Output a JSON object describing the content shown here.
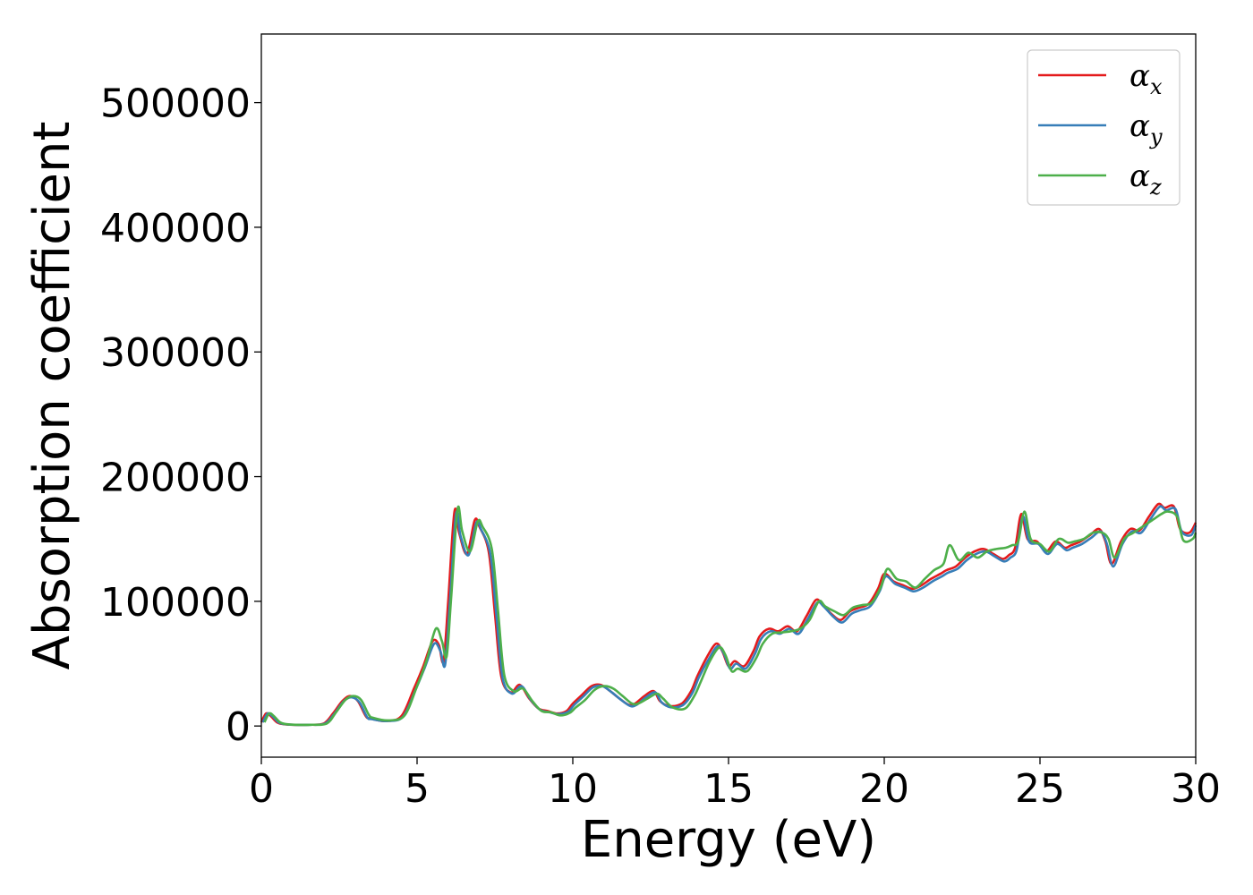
{
  "chart_data": {
    "type": "line",
    "title": "",
    "xlabel": "Energy (eV)",
    "ylabel": "Absorption coefficient",
    "xlim": [
      0,
      30
    ],
    "ylim": [
      -25000,
      555000
    ],
    "xticks": [
      0,
      5,
      10,
      15,
      20,
      25,
      30
    ],
    "yticks": [
      0,
      100000,
      200000,
      300000,
      400000,
      500000
    ],
    "grid": false,
    "legend_position": "top-right",
    "series": [
      {
        "name": "αx",
        "name_base": "α",
        "name_sub": "x",
        "color": "#e41a1c",
        "x": [
          0,
          0.15,
          0.3,
          0.5,
          0.7,
          1,
          1.5,
          2,
          2.3,
          2.6,
          2.85,
          3.1,
          3.35,
          3.5,
          4,
          4.5,
          4.9,
          5.2,
          5.5,
          5.7,
          5.85,
          6.0,
          6.2,
          6.35,
          6.6,
          6.85,
          7.0,
          7.3,
          7.5,
          7.7,
          8.0,
          8.3,
          8.6,
          8.9,
          9.2,
          9.5,
          9.8,
          10.0,
          10.3,
          10.6,
          10.9,
          11.2,
          11.5,
          11.8,
          12.0,
          12.3,
          12.6,
          12.8,
          13.1,
          13.5,
          13.8,
          14.0,
          14.3,
          14.6,
          14.8,
          15.0,
          15.2,
          15.5,
          15.8,
          16.0,
          16.3,
          16.6,
          16.9,
          17.2,
          17.5,
          17.8,
          18.0,
          18.3,
          18.6,
          18.9,
          19.2,
          19.5,
          19.8,
          20.0,
          20.3,
          20.6,
          20.9,
          21.2,
          21.5,
          21.8,
          22.0,
          22.3,
          22.6,
          22.9,
          23.2,
          23.5,
          23.8,
          24.0,
          24.2,
          24.4,
          24.6,
          24.9,
          25.2,
          25.5,
          25.8,
          26.0,
          26.3,
          26.6,
          26.9,
          27.1,
          27.3,
          27.6,
          27.9,
          28.2,
          28.5,
          28.8,
          29.0,
          29.3,
          29.5,
          29.8,
          30.0
        ],
        "y": [
          3000,
          10000,
          8000,
          3000,
          1500,
          1000,
          1000,
          2000,
          10000,
          20000,
          24000,
          20000,
          8000,
          6000,
          4000,
          8000,
          30000,
          48000,
          68000,
          65000,
          52000,
          100000,
          172000,
          155000,
          138000,
          165000,
          160000,
          140000,
          90000,
          40000,
          27000,
          33000,
          22000,
          14000,
          12000,
          10000,
          12000,
          18000,
          25000,
          32000,
          33000,
          28000,
          22000,
          17000,
          18000,
          24000,
          28000,
          20000,
          16000,
          18000,
          28000,
          40000,
          55000,
          66000,
          60000,
          48000,
          52000,
          48000,
          60000,
          72000,
          78000,
          76000,
          80000,
          76000,
          88000,
          101000,
          98000,
          90000,
          85000,
          92000,
          95000,
          98000,
          110000,
          122000,
          116000,
          113000,
          110000,
          113000,
          118000,
          122000,
          125000,
          128000,
          135000,
          140000,
          142000,
          138000,
          134000,
          137000,
          143000,
          170000,
          150000,
          148000,
          140000,
          148000,
          143000,
          145000,
          148000,
          153000,
          158000,
          148000,
          130000,
          148000,
          158000,
          157000,
          168000,
          178000,
          175000,
          176000,
          158000,
          155000,
          163000
        ],
        "x_offset": 0
      },
      {
        "name": "αy",
        "name_base": "α",
        "name_sub": "y",
        "color": "#377eb8",
        "x": [
          0,
          0.15,
          0.3,
          0.5,
          0.7,
          1,
          1.5,
          2,
          2.3,
          2.6,
          2.85,
          3.1,
          3.35,
          3.5,
          4,
          4.5,
          4.9,
          5.2,
          5.5,
          5.7,
          5.85,
          6.0,
          6.2,
          6.35,
          6.6,
          6.85,
          7.0,
          7.3,
          7.5,
          7.7,
          8.0,
          8.3,
          8.6,
          8.9,
          9.2,
          9.5,
          9.8,
          10.0,
          10.3,
          10.6,
          10.9,
          11.2,
          11.5,
          11.8,
          12.0,
          12.3,
          12.6,
          12.8,
          13.1,
          13.5,
          13.8,
          14.0,
          14.3,
          14.6,
          14.8,
          15.0,
          15.2,
          15.5,
          15.8,
          16.0,
          16.3,
          16.6,
          16.9,
          17.2,
          17.5,
          17.8,
          18.0,
          18.3,
          18.6,
          18.9,
          19.2,
          19.5,
          19.8,
          20.0,
          20.3,
          20.6,
          20.9,
          21.2,
          21.5,
          21.8,
          22.0,
          22.3,
          22.6,
          22.9,
          23.2,
          23.5,
          23.8,
          24.0,
          24.2,
          24.4,
          24.6,
          24.9,
          25.2,
          25.5,
          25.8,
          26.0,
          26.3,
          26.6,
          26.9,
          27.1,
          27.3,
          27.6,
          27.9,
          28.2,
          28.5,
          28.8,
          29.0,
          29.3,
          29.5,
          29.8,
          30.0
        ],
        "y": [
          3000,
          10000,
          8000,
          3000,
          1500,
          1000,
          1000,
          2000,
          10000,
          20000,
          23000,
          19000,
          7000,
          5500,
          4000,
          7500,
          29000,
          47000,
          66000,
          60000,
          49000,
          98000,
          170000,
          152000,
          137000,
          163000,
          158000,
          138000,
          88000,
          38000,
          26000,
          32000,
          21000,
          13000,
          11000,
          9500,
          11500,
          17000,
          24000,
          31000,
          32000,
          27000,
          21000,
          16000,
          17000,
          23000,
          27000,
          19000,
          15000,
          17000,
          27000,
          39000,
          53000,
          64000,
          58000,
          46000,
          50000,
          46000,
          58000,
          70000,
          76000,
          74000,
          78000,
          74000,
          86000,
          99000,
          96000,
          88000,
          83000,
          90000,
          93000,
          96000,
          108000,
          120000,
          114000,
          111000,
          108000,
          111000,
          116000,
          120000,
          123000,
          126000,
          133000,
          138000,
          140000,
          136000,
          132000,
          135000,
          141000,
          168000,
          148000,
          146000,
          138000,
          146000,
          141000,
          143000,
          146000,
          151000,
          156000,
          146000,
          128000,
          146000,
          156000,
          155000,
          166000,
          176000,
          173000,
          174000,
          156000,
          153000,
          161000
        ],
        "x_offset": 0.05
      },
      {
        "name": "αz",
        "name_base": "α",
        "name_sub": "z",
        "color": "#4daf4a",
        "x": [
          0,
          0.15,
          0.3,
          0.5,
          0.7,
          1,
          1.5,
          2,
          2.3,
          2.6,
          2.85,
          3.1,
          3.35,
          3.5,
          4,
          4.5,
          4.9,
          5.2,
          5.5,
          5.7,
          5.85,
          6.0,
          6.2,
          6.35,
          6.6,
          6.85,
          7.0,
          7.3,
          7.5,
          7.7,
          8.0,
          8.3,
          8.6,
          8.9,
          9.2,
          9.5,
          9.8,
          10.0,
          10.3,
          10.6,
          10.9,
          11.2,
          11.5,
          11.8,
          12.0,
          12.3,
          12.6,
          12.8,
          13.1,
          13.5,
          13.8,
          14.0,
          14.3,
          14.6,
          14.8,
          15.0,
          15.2,
          15.5,
          15.8,
          16.0,
          16.3,
          16.6,
          16.9,
          17.2,
          17.5,
          17.8,
          18.0,
          18.3,
          18.6,
          18.9,
          19.2,
          19.5,
          19.8,
          20.0,
          20.3,
          20.6,
          20.9,
          21.2,
          21.5,
          21.8,
          22.0,
          22.3,
          22.6,
          22.9,
          23.2,
          23.5,
          23.8,
          24.0,
          24.2,
          24.4,
          24.6,
          24.9,
          25.2,
          25.5,
          25.8,
          26.0,
          26.3,
          26.6,
          26.9,
          27.1,
          27.3,
          27.6,
          27.9,
          28.2,
          28.5,
          28.8,
          29.0,
          29.3,
          29.5,
          29.8,
          30.0
        ],
        "y": [
          3000,
          10000,
          8000,
          3000,
          1500,
          1000,
          1000,
          2000,
          11000,
          21000,
          24000,
          21000,
          9000,
          6500,
          4500,
          8500,
          32000,
          52000,
          78000,
          68000,
          56000,
          105000,
          174000,
          156000,
          140000,
          164000,
          160000,
          142000,
          92000,
          41000,
          28000,
          30000,
          20000,
          12000,
          11000,
          8500,
          10500,
          15000,
          21000,
          29000,
          32000,
          30000,
          24000,
          18000,
          18000,
          22000,
          26000,
          22000,
          15000,
          14000,
          24000,
          35000,
          52000,
          63000,
          57000,
          44000,
          46000,
          44000,
          55000,
          66000,
          74000,
          75000,
          76000,
          78000,
          85000,
          100000,
          96000,
          92000,
          89000,
          95000,
          97000,
          99000,
          112000,
          126000,
          118000,
          116000,
          111000,
          118000,
          125000,
          130000,
          145000,
          133000,
          139000,
          135000,
          140000,
          142000,
          143000,
          145000,
          148000,
          172000,
          150000,
          146000,
          140000,
          150000,
          147000,
          148000,
          150000,
          155000,
          155000,
          150000,
          135000,
          150000,
          155000,
          160000,
          165000,
          170000,
          172000,
          168000,
          149000,
          150000,
          155000
        ],
        "x_offset": 0.1
      }
    ]
  }
}
